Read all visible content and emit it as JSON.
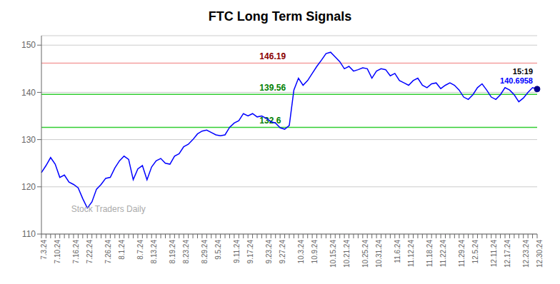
{
  "chart_data": {
    "type": "line",
    "title": "FTC Long Term Signals",
    "categories": [
      "7.3.24",
      null,
      null,
      "7.10.24",
      null,
      null,
      null,
      "7.16.24",
      null,
      null,
      "7.22.24",
      null,
      null,
      null,
      "7.26.24",
      null,
      null,
      "8.1.24",
      null,
      null,
      null,
      "8.7.24",
      null,
      null,
      "8.13.24",
      null,
      null,
      null,
      "8.19.24",
      null,
      null,
      "8.23.24",
      null,
      null,
      null,
      "8.29.24",
      null,
      null,
      "9.5.24",
      null,
      null,
      null,
      "9.11.24",
      null,
      null,
      "9.17.24",
      null,
      null,
      null,
      "9.23.24",
      null,
      null,
      "9.27.24",
      null,
      null,
      null,
      "10.3.24",
      null,
      null,
      "10.9.24",
      null,
      null,
      null,
      "10.15.24",
      null,
      null,
      "10.21.24",
      null,
      null,
      null,
      "10.25.24",
      null,
      null,
      "10.31.24",
      null,
      null,
      null,
      "11.6.24",
      null,
      null,
      "11.12.24",
      null,
      null,
      null,
      "11.18.24",
      null,
      null,
      "11.22.24",
      null,
      null,
      null,
      "11.29.24",
      null,
      null,
      "12.5.24",
      null,
      null,
      null,
      "12.11.24",
      null,
      null,
      "12.17.24",
      null,
      null,
      null,
      "12.23.24",
      null,
      null,
      "12.30.24"
    ],
    "values": [
      123.0,
      124.5,
      126.2,
      124.8,
      122.0,
      122.5,
      121.0,
      120.5,
      119.8,
      117.5,
      115.5,
      116.8,
      119.5,
      120.5,
      121.8,
      122.0,
      124.0,
      125.5,
      126.5,
      125.8,
      121.5,
      123.8,
      124.5,
      121.5,
      124.2,
      125.5,
      126.0,
      125.0,
      124.8,
      126.5,
      127.0,
      128.5,
      129.0,
      130.0,
      131.2,
      131.8,
      132.0,
      131.5,
      131.0,
      130.8,
      131.0,
      132.6,
      133.5,
      134.0,
      135.5,
      135.0,
      135.5,
      134.8,
      135.0,
      134.5,
      133.8,
      133.5,
      132.5,
      132.2,
      133.0,
      140.5,
      143.0,
      141.5,
      142.5,
      144.0,
      145.5,
      146.8,
      148.2,
      148.5,
      147.5,
      146.5,
      145.0,
      145.5,
      144.5,
      144.8,
      145.2,
      145.0,
      143.0,
      144.5,
      145.0,
      144.8,
      143.5,
      144.0,
      142.5,
      142.0,
      141.5,
      142.5,
      143.0,
      141.5,
      141.0,
      141.8,
      142.0,
      140.8,
      141.5,
      142.0,
      141.5,
      140.5,
      139.0,
      138.5,
      139.5,
      141.0,
      141.8,
      140.5,
      139.0,
      138.5,
      139.5,
      141.0,
      140.5,
      139.5,
      138.0,
      138.8,
      140.0,
      141.0,
      140.6958
    ],
    "color": "blue",
    "ylim": [
      110,
      152
    ],
    "yticks": [
      110,
      120,
      130,
      140,
      150
    ],
    "grid": true,
    "hlines": [
      {
        "y": 146.19,
        "label": "146.19",
        "color": "#f4a0a0",
        "label_color": "darkred"
      },
      {
        "y": 139.56,
        "label": "139.56",
        "color": "limegreen",
        "label_color": "green"
      },
      {
        "y": 132.6,
        "label": "132.6",
        "color": "limegreen",
        "label_color": "green"
      }
    ],
    "annotations": [
      {
        "text": "15:19",
        "color": "black"
      },
      {
        "text": "140.6958",
        "color": "blue"
      }
    ],
    "watermark": {
      "text": "Stock Traders Daily",
      "color": "#aaaaaa"
    }
  }
}
